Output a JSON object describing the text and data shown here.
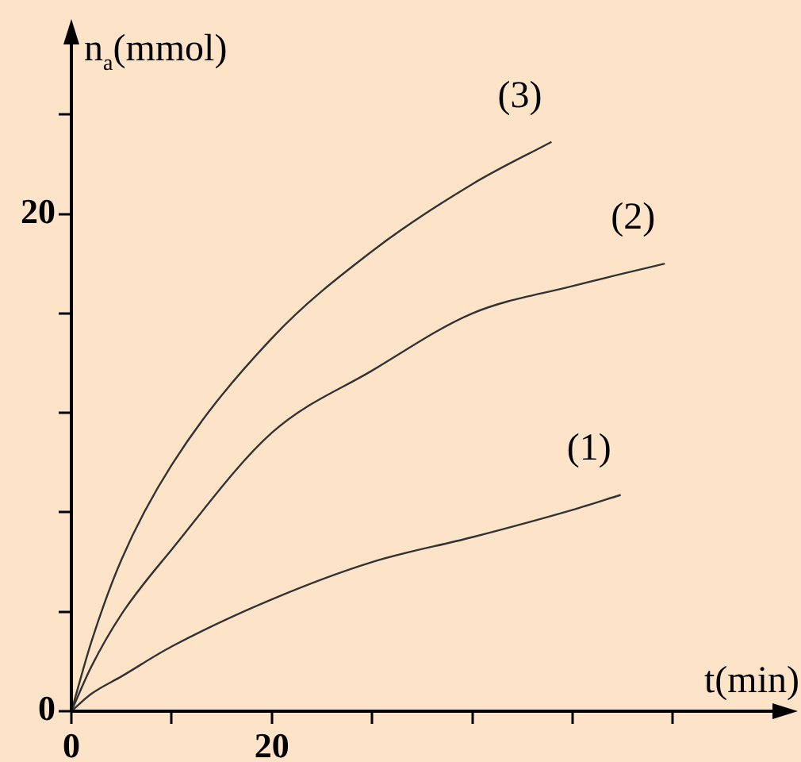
{
  "chart_data": {
    "type": "line",
    "xlabel": "t(min)",
    "ylabel": "n$_{a}$(mmol)",
    "xlim": [
      0,
      72
    ],
    "ylim": [
      0,
      27.2
    ],
    "xticks": [
      {
        "value": 0,
        "label": "0"
      },
      {
        "value": 10,
        "label": null
      },
      20,
      {
        "value": 30,
        "label": null
      },
      {
        "value": 40,
        "label": null
      },
      {
        "value": 50,
        "label": null
      },
      {
        "value": 60,
        "label": null
      }
    ],
    "yticks": [
      0,
      {
        "value": 4,
        "label": null
      },
      {
        "value": 8,
        "label": null
      },
      {
        "value": 12,
        "label": null
      },
      {
        "value": 16,
        "label": null
      },
      20,
      {
        "value": 24,
        "label": null
      }
    ],
    "marker": "none",
    "line_style": "solid",
    "legend": false,
    "grid": false,
    "series": [
      {
        "name": "(1)",
        "color": "#333333",
        "x": [
          0,
          2,
          5,
          10,
          20,
          30,
          40,
          50,
          54.8
        ],
        "values": [
          0,
          0.7,
          1.4,
          2.6,
          4.5,
          6.0,
          7.0,
          8.1,
          8.7
        ]
      },
      {
        "name": "(2)",
        "color": "#333333",
        "x": [
          0,
          2,
          5,
          10,
          20,
          30,
          40,
          50,
          59.2
        ],
        "values": [
          0,
          1.8,
          3.9,
          6.5,
          11.2,
          13.7,
          16.0,
          17.1,
          18.0
        ]
      },
      {
        "name": "(3)",
        "color": "#333333",
        "x": [
          0,
          2,
          5,
          10,
          20,
          30,
          40,
          47.9
        ],
        "values": [
          0,
          2.8,
          6.1,
          9.9,
          15.0,
          18.5,
          21.2,
          22.9
        ]
      }
    ]
  }
}
